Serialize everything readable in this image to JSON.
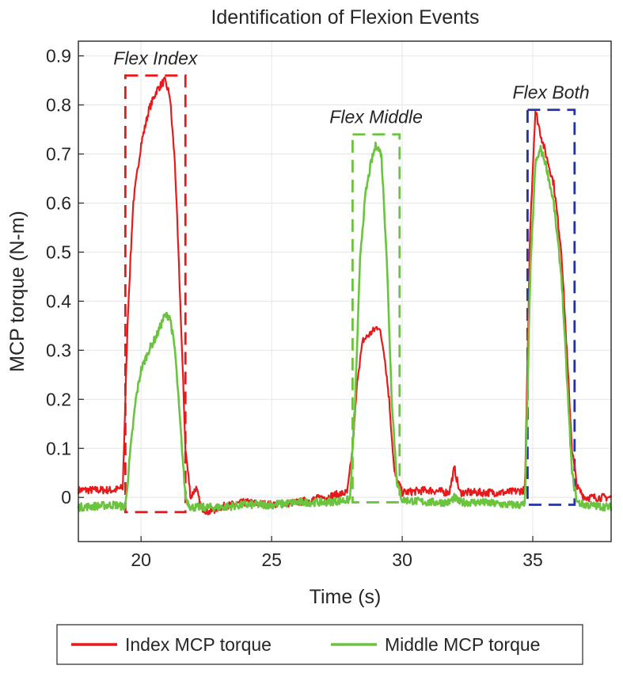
{
  "chart_data": {
    "type": "line",
    "title": "Identification of Flexion Events",
    "xlabel": "Time (s)",
    "ylabel": "MCP torque (N-m)",
    "xlim": [
      17.6,
      38
    ],
    "ylim": [
      -0.09,
      0.93
    ],
    "xticks": [
      "20",
      "25",
      "30",
      "35"
    ],
    "yticks": [
      "0",
      "0.1",
      "0.2",
      "0.3",
      "0.4",
      "0.5",
      "0.6",
      "0.7",
      "0.8",
      "0.9"
    ],
    "grid": true,
    "legend": "bottom",
    "series": [
      {
        "name": "Index MCP torque",
        "color": "#e8191b",
        "x": [
          17.6,
          19.0,
          19.3,
          19.5,
          19.7,
          20.0,
          20.3,
          20.6,
          20.9,
          21.1,
          21.3,
          21.5,
          21.7,
          21.9,
          22.1,
          22.3,
          22.6,
          23.0,
          24.0,
          25.0,
          26.0,
          27.0,
          27.9,
          28.1,
          28.3,
          28.5,
          28.7,
          28.9,
          29.1,
          29.3,
          29.5,
          29.7,
          30.0,
          31.0,
          31.8,
          32.0,
          32.2,
          33.0,
          34.0,
          34.7,
          34.9,
          35.1,
          35.3,
          35.5,
          35.8,
          36.1,
          36.3,
          36.5,
          36.7,
          37.0,
          38.0
        ],
        "values": [
          0.015,
          0.015,
          0.02,
          0.38,
          0.6,
          0.72,
          0.79,
          0.83,
          0.85,
          0.82,
          0.68,
          0.4,
          0.1,
          0.0,
          0.02,
          -0.02,
          -0.03,
          -0.02,
          -0.01,
          -0.015,
          -0.01,
          0.0,
          0.01,
          0.1,
          0.25,
          0.32,
          0.33,
          0.34,
          0.35,
          0.3,
          0.2,
          0.05,
          0.01,
          0.015,
          0.01,
          0.06,
          0.01,
          0.01,
          0.01,
          0.015,
          0.55,
          0.79,
          0.74,
          0.7,
          0.64,
          0.5,
          0.3,
          0.1,
          0.02,
          0.0,
          0.0
        ]
      },
      {
        "name": "Middle MCP torque",
        "color": "#6ac43e",
        "x": [
          17.6,
          19.0,
          19.4,
          19.6,
          19.8,
          20.0,
          20.3,
          20.6,
          20.9,
          21.1,
          21.3,
          21.5,
          21.7,
          21.9,
          22.2,
          23.0,
          24.0,
          25.0,
          26.0,
          27.0,
          28.0,
          28.2,
          28.4,
          28.6,
          28.8,
          29.0,
          29.2,
          29.4,
          29.6,
          29.8,
          30.0,
          31.0,
          31.8,
          32.0,
          32.2,
          33.0,
          34.0,
          34.7,
          34.9,
          35.1,
          35.3,
          35.5,
          35.8,
          36.1,
          36.3,
          36.5,
          36.7,
          37.0,
          38.0
        ],
        "values": [
          -0.02,
          -0.015,
          -0.02,
          0.1,
          0.2,
          0.26,
          0.3,
          0.33,
          0.37,
          0.37,
          0.3,
          0.15,
          0.0,
          -0.02,
          -0.02,
          -0.02,
          -0.015,
          -0.015,
          -0.01,
          -0.01,
          -0.005,
          0.2,
          0.5,
          0.62,
          0.68,
          0.72,
          0.7,
          0.5,
          0.2,
          0.03,
          -0.005,
          -0.01,
          -0.01,
          0.0,
          -0.01,
          -0.01,
          -0.015,
          -0.015,
          0.45,
          0.68,
          0.71,
          0.68,
          0.6,
          0.45,
          0.25,
          0.05,
          -0.01,
          -0.015,
          -0.02
        ]
      }
    ],
    "annotations": [
      {
        "label": "Flex Index",
        "color": "#e8191b",
        "x0": 19.4,
        "x1": 21.7,
        "y0": -0.03,
        "y1": 0.86
      },
      {
        "label": "Flex Middle",
        "color": "#6ac43e",
        "x0": 28.1,
        "x1": 29.9,
        "y0": -0.01,
        "y1": 0.74
      },
      {
        "label": "Flex Both",
        "color": "#2432a8",
        "x0": 34.8,
        "x1": 36.6,
        "y0": -0.015,
        "y1": 0.79
      }
    ]
  }
}
